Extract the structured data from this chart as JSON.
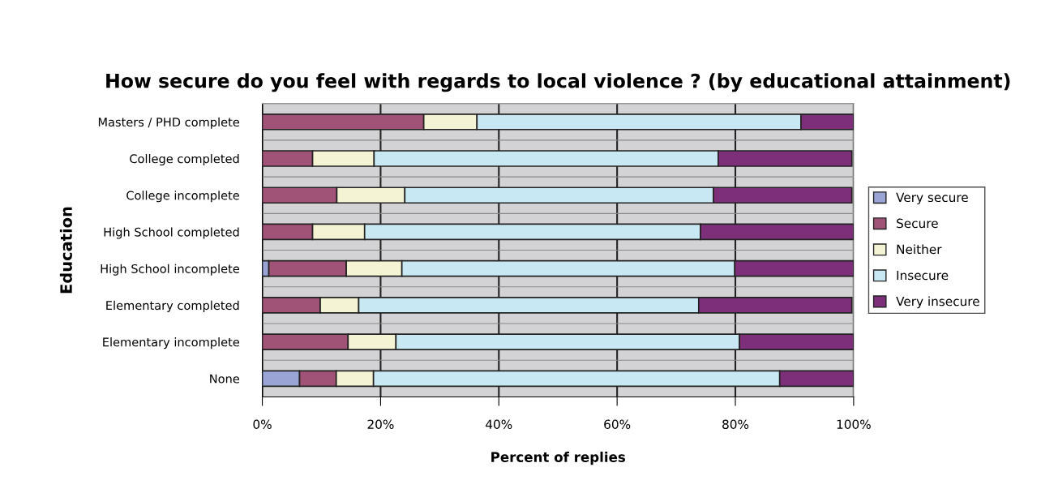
{
  "chart_data": {
    "type": "bar",
    "orientation": "horizontal",
    "stacked": true,
    "title": "How secure do you feel with regards to local violence ? (by educational attainment)",
    "xlabel": "Percent of replies",
    "ylabel": "Education",
    "categories": [
      "Masters / PHD complete",
      "College completed",
      "College incomplete",
      "High School completed",
      "High School incomplete",
      "Elementary completed",
      "Elementary incomplete",
      "None"
    ],
    "series": [
      {
        "name": "Very secure",
        "color": "#9aa5d6",
        "values": [
          0,
          null,
          null,
          0,
          1.1,
          null,
          0,
          6.3
        ]
      },
      {
        "name": "Secure",
        "color": "#a05377",
        "values": [
          27.3,
          8.5,
          12.6,
          8.5,
          13.1,
          9.8,
          14.5,
          6.2
        ]
      },
      {
        "name": "Neither",
        "color": "#f4f3d3",
        "values": [
          9.0,
          10.4,
          11.5,
          8.8,
          9.4,
          6.5,
          8.1,
          6.3
        ]
      },
      {
        "name": "Insecure",
        "color": "#c8e9f3",
        "values": [
          54.8,
          58.2,
          52.2,
          56.8,
          56.3,
          57.5,
          58.1,
          68.7
        ]
      },
      {
        "name": "Very insecure",
        "color": "#7d2f7a",
        "values": [
          8.9,
          22.6,
          23.4,
          25.9,
          20.1,
          25.9,
          19.3,
          12.5
        ]
      }
    ],
    "xlim": [
      0,
      100
    ],
    "xticks": [
      {
        "value": 0,
        "label": "0%"
      },
      {
        "value": 20,
        "label": "20%"
      },
      {
        "value": 40,
        "label": "40%"
      },
      {
        "value": 60,
        "label": "60%"
      },
      {
        "value": 80,
        "label": "80%"
      },
      {
        "value": 100,
        "label": "100%"
      }
    ],
    "grid": "x",
    "legend": "right"
  }
}
